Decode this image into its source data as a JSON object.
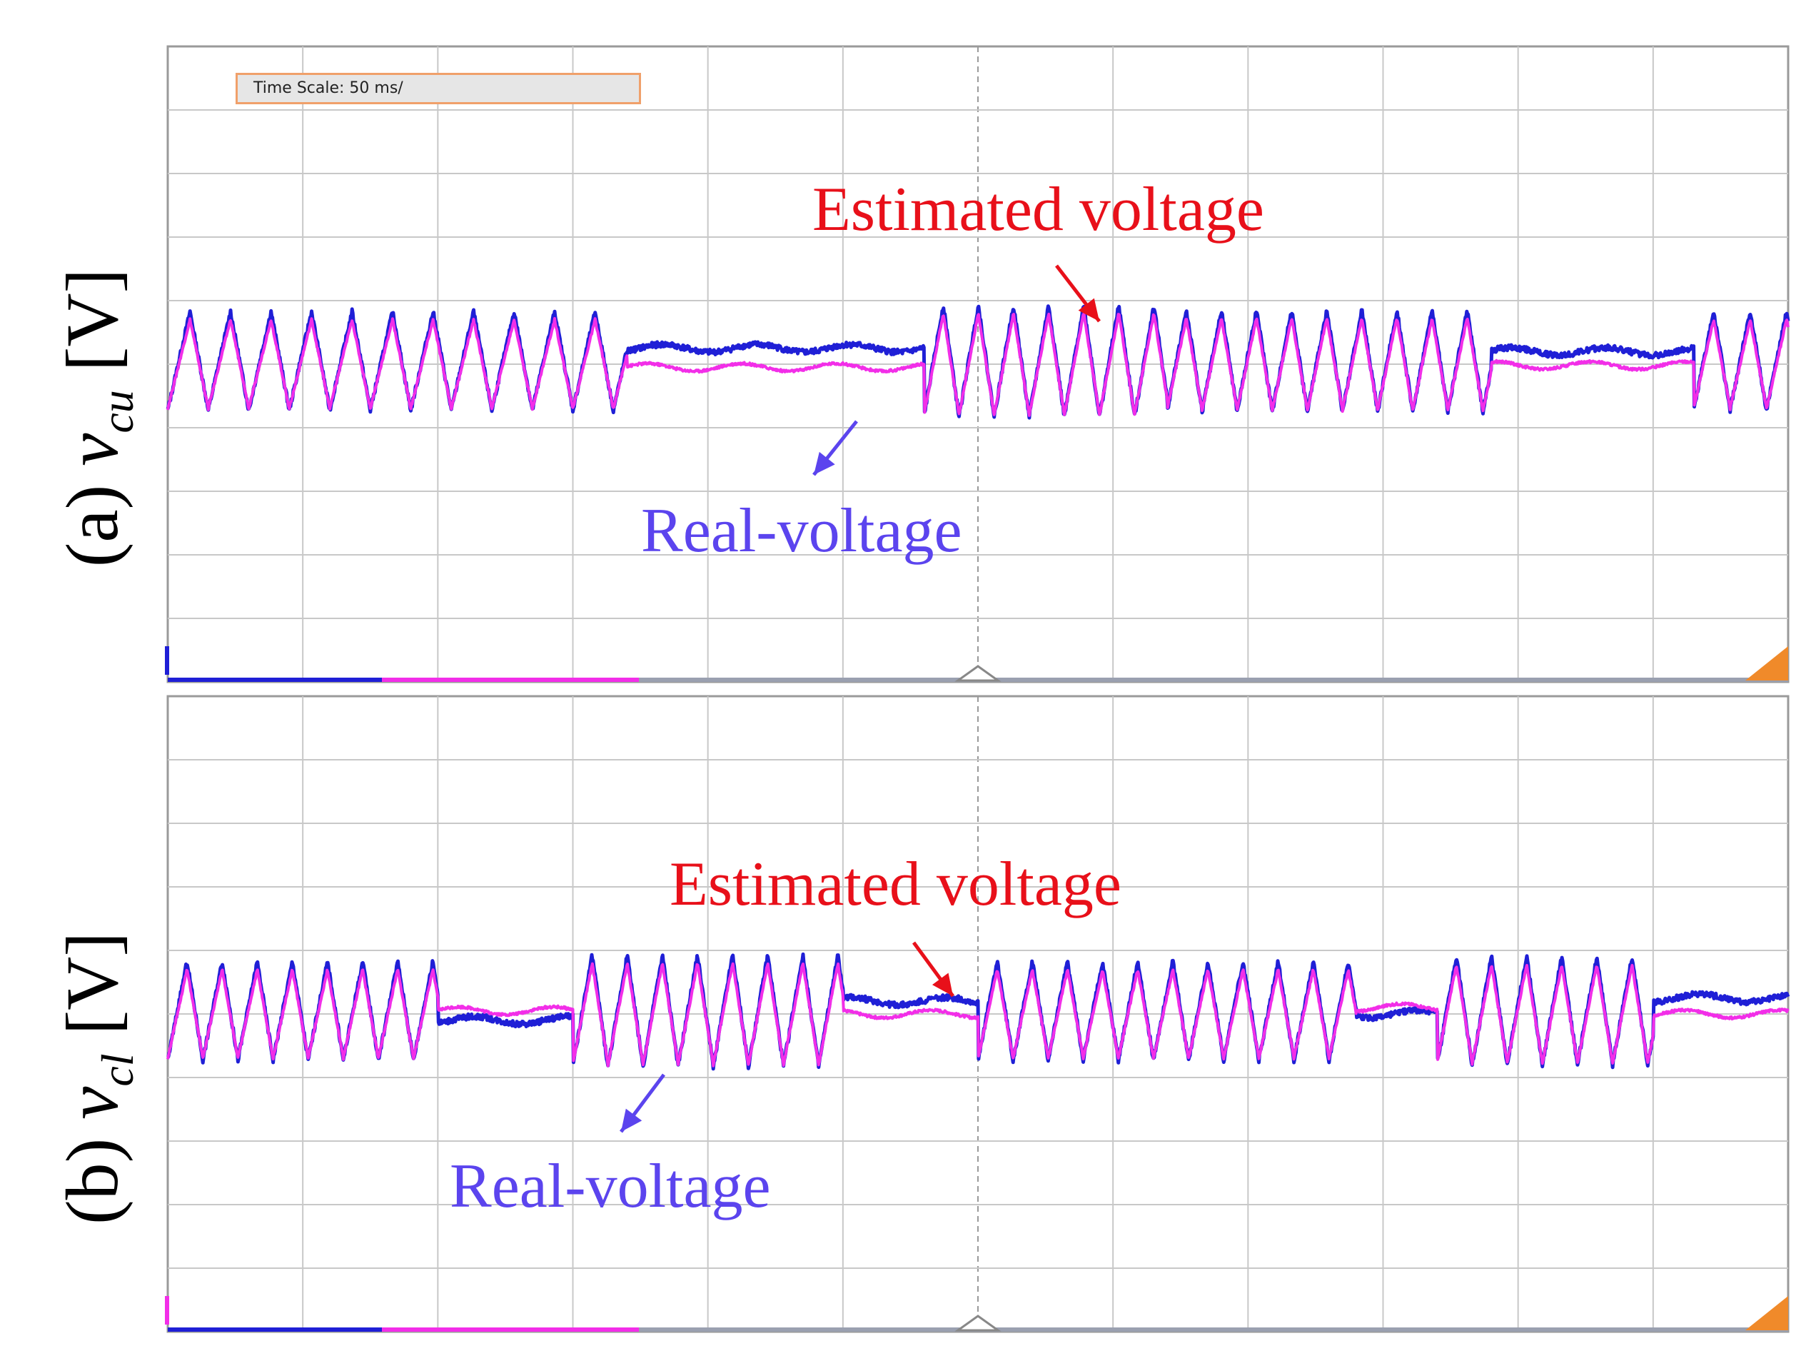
{
  "time_scale_label": "Time Scale: 50 ms/",
  "colors": {
    "real": "#1f1fd6",
    "estimated": "#f22ee8",
    "annotation_estimated": "#e8101a",
    "annotation_real": "#5b44ee",
    "grid": "#c8c8c8"
  },
  "panels": [
    {
      "id": "a",
      "ylabel_prefix": "(a) ",
      "ylabel_var": "v",
      "ylabel_sub": "cu",
      "ylabel_unit": " [V]",
      "estimated_label": "Estimated voltage",
      "real_label": "Real-voltage"
    },
    {
      "id": "b",
      "ylabel_prefix": "(b) ",
      "ylabel_var": "v",
      "ylabel_sub": "cl",
      "ylabel_unit": " [V]",
      "estimated_label": "Estimated voltage",
      "real_label": "Real-voltage"
    }
  ],
  "chart_data": [
    {
      "type": "line",
      "title": "",
      "x_divisions": 12,
      "y_divisions": 10,
      "series": [
        {
          "color": "#1f1fd6",
          "baseline_div": 5.0,
          "segments": [
            [
              0,
              3.4,
              "osc",
              0.3,
              1.55
            ],
            [
              3.4,
              5.6,
              "flat",
              0.25,
              0
            ],
            [
              5.6,
              7.4,
              "osc",
              0.26,
              1.75
            ],
            [
              7.4,
              9.8,
              "osc",
              0.26,
              1.6
            ],
            [
              9.8,
              11.3,
              "flat",
              0.2,
              0
            ],
            [
              11.3,
              12,
              "osc",
              0.27,
              1.55
            ]
          ]
        },
        {
          "color": "#f22ee8",
          "baseline_div": 5.0,
          "segments": [
            [
              0,
              3.4,
              "osc",
              0.3,
              1.4
            ],
            [
              3.4,
              5.6,
              "flat",
              -0.05,
              0
            ],
            [
              5.6,
              7.4,
              "osc",
              0.26,
              1.6
            ],
            [
              7.4,
              9.8,
              "osc",
              0.26,
              1.45
            ],
            [
              9.8,
              11.3,
              "flat",
              -0.02,
              0
            ],
            [
              11.3,
              12,
              "osc",
              0.27,
              1.4
            ]
          ]
        }
      ]
    },
    {
      "type": "line",
      "title": "",
      "x_divisions": 12,
      "y_divisions": 10,
      "series": [
        {
          "color": "#1f1fd6",
          "baseline_div": 5.0,
          "segments": [
            [
              0,
              2.0,
              "osc",
              0.26,
              1.55
            ],
            [
              2.0,
              3.0,
              "flat",
              -0.1,
              0
            ],
            [
              3.0,
              5.0,
              "osc",
              0.26,
              1.75
            ],
            [
              5.0,
              6.0,
              "flat",
              0.2,
              0
            ],
            [
              6.0,
              8.8,
              "osc",
              0.26,
              1.55
            ],
            [
              8.8,
              9.4,
              "flat",
              0.0,
              0
            ],
            [
              9.4,
              11.0,
              "osc",
              0.26,
              1.7
            ],
            [
              11.0,
              12,
              "flat",
              0.25,
              0
            ]
          ]
        },
        {
          "color": "#f22ee8",
          "baseline_div": 5.0,
          "segments": [
            [
              0,
              2.0,
              "osc",
              0.26,
              1.4
            ],
            [
              2.0,
              3.0,
              "flat",
              0.05,
              0
            ],
            [
              3.0,
              5.0,
              "osc",
              0.26,
              1.6
            ],
            [
              5.0,
              6.0,
              "flat",
              0.0,
              0
            ],
            [
              6.0,
              8.8,
              "osc",
              0.26,
              1.4
            ],
            [
              8.8,
              9.4,
              "flat",
              0.1,
              0
            ],
            [
              9.4,
              11.0,
              "osc",
              0.26,
              1.55
            ],
            [
              11.0,
              12,
              "flat",
              0.0,
              0
            ]
          ]
        }
      ]
    }
  ]
}
